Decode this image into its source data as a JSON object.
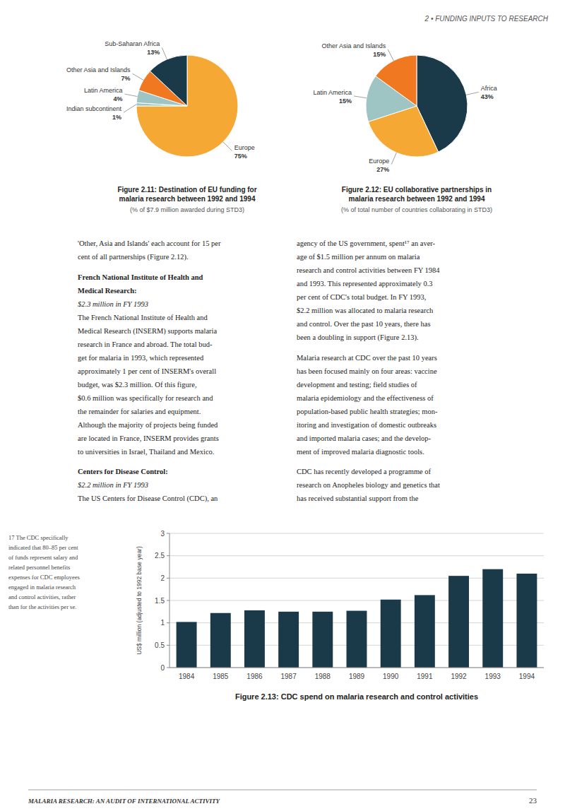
{
  "chart_data": [
    {
      "type": "pie",
      "title": "Figure 2.11: Destination of EU funding for\nmalaria research between 1992 and 1994",
      "subtitle": "(% of $7.9 million awarded during STD3)",
      "categories": [
        "Europe",
        "Indian subcontinent",
        "Latin America",
        "Other Asia and Islands",
        "Sub-Saharan Africa"
      ],
      "values": [
        75,
        1,
        4,
        7,
        13
      ],
      "value_labels": [
        "75%",
        "1%",
        "4%",
        "7%",
        "13%"
      ],
      "colors": [
        "#f5a833",
        "#9fc4c4",
        "#9fc4c4",
        "#f07820",
        "#1a3a4a"
      ]
    },
    {
      "type": "pie",
      "title": "Figure 2.12: EU collaborative partnerships in\nmalaria research between 1992 and 1994",
      "subtitle": "(% of total number of countries collaborating in STD3)",
      "categories": [
        "Africa",
        "Europe",
        "Latin America",
        "Other Asia and Islands"
      ],
      "values": [
        43,
        27,
        15,
        15
      ],
      "value_labels": [
        "43%",
        "27%",
        "15%",
        "15%"
      ],
      "colors": [
        "#1a3a4a",
        "#f5a833",
        "#9fc4c4",
        "#f07820"
      ]
    },
    {
      "type": "bar",
      "title": "Figure 2.13: CDC spend on malaria research and control activities",
      "y_label": "US$ million (adjusted to 1992 base year)",
      "categories": [
        "1984",
        "1985",
        "1986",
        "1987",
        "1988",
        "1989",
        "1990",
        "1991",
        "1992",
        "1993",
        "1994"
      ],
      "values": [
        1.02,
        1.22,
        1.28,
        1.25,
        1.25,
        1.27,
        1.52,
        1.62,
        2.05,
        2.2,
        2.1
      ],
      "color": "#1a3a4a",
      "ylim": [
        0,
        3
      ],
      "yticks": [
        0,
        0.5,
        1,
        1.5,
        2,
        2.5,
        3
      ],
      "grid": true
    }
  ],
  "annotations": {
    "header": "2 • FUNDING INPUTS TO RESEARCH",
    "footer": "MALARIA RESEARCH: AN AUDIT OF INTERNATIONAL ACTIVITY",
    "page_number": "23",
    "body_left": [
      {
        "lines": [
          "'Other, Asia and Islands' each account for 15 per",
          "cent of all partnerships (Figure 2.12)."
        ]
      },
      {
        "heading": [
          "French National Institute of Health and",
          "Medical Research:"
        ],
        "subheading": "$2.3 million in FY 1993",
        "lines": [
          "The French National Institute of Health and",
          "Medical Research (INSERM) supports malaria",
          "research in France and abroad. The total bud-",
          "get for malaria in 1993, which represented",
          "approximately 1 per cent of INSERM's overall",
          "budget, was $2.3 million. Of this figure,",
          "$0.6 million was specifically for research and",
          "the remainder for salaries and equipment.",
          "Although the majority of projects being funded",
          "are located in France, INSERM provides grants",
          "to universities in Israel, Thailand and Mexico."
        ]
      },
      {
        "heading": [
          "Centers for Disease Control:"
        ],
        "subheading": "$2.2 million in FY 1993",
        "lines": [
          "The US Centers for Disease Control (CDC), an"
        ]
      }
    ],
    "body_right": [
      {
        "lines": [
          "agency of the US government, spent¹⁷ an aver-",
          "age of $1.5 million per annum on malaria",
          "research and control activities between FY 1984",
          "and 1993. This represented approximately 0.3",
          "per cent of CDC's total budget. In FY 1993,",
          "$2.2 million was allocated to malaria research",
          "and control. Over the past 10 years, there has",
          "been a doubling in support (Figure 2.13)."
        ]
      },
      {
        "lines": [
          "Malaria research at CDC over the past 10 years",
          "has been focused mainly on four areas: vaccine",
          "development and testing; field studies of",
          "malaria epidemiology and the effectiveness of",
          "population-based public health strategies; mon-",
          "itoring and investigation of domestic outbreaks",
          "and imported malaria cases; and the develop-",
          "ment of improved malaria diagnostic tools."
        ]
      },
      {
        "lines": [
          "CDC has recently developed a programme of",
          "research on Anopheles biology and genetics that",
          "has received substantial support from the"
        ]
      }
    ],
    "note": [
      "17 The CDC specifically",
      "indicated that 80–85 per cent",
      "of funds represent salary and",
      "related personnel benefits",
      "expenses for CDC employees",
      "engaged in malaria research",
      "and control activities, rather",
      "than for the activities per se."
    ]
  }
}
